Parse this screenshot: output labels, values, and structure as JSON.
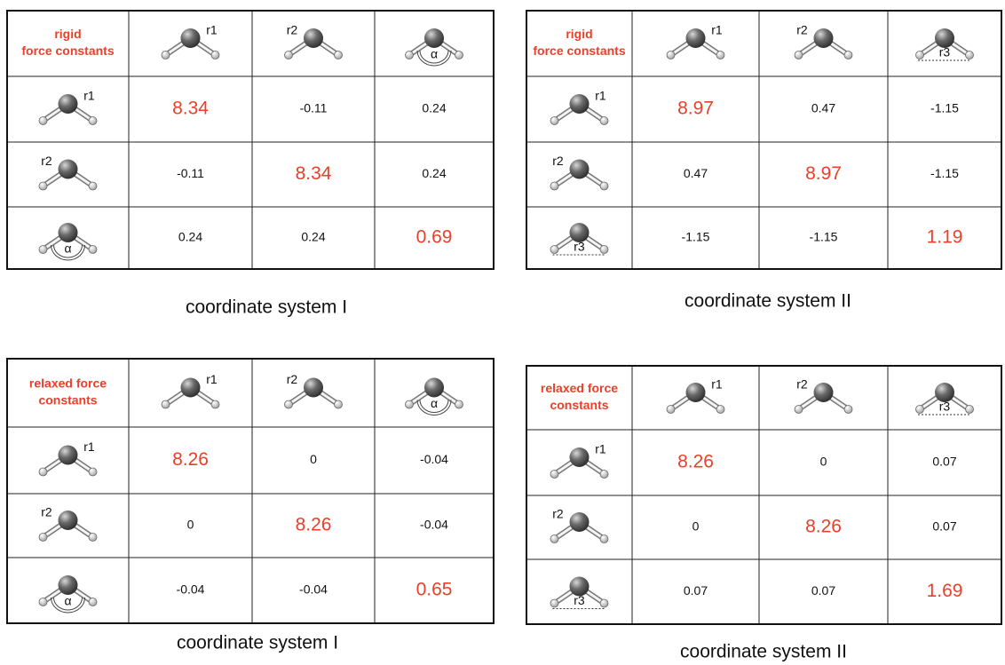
{
  "tables": [
    {
      "header": [
        "rigid",
        "force constants"
      ],
      "columns": [
        "r1",
        "r2",
        "α"
      ],
      "rows": [
        "r1",
        "r2",
        "α"
      ],
      "cells": [
        [
          "8.34",
          "-0.11",
          "0.24"
        ],
        [
          "-0.11",
          "8.34",
          "0.24"
        ],
        [
          "0.24",
          "0.24",
          "0.69"
        ]
      ],
      "caption": "coordinate system I"
    },
    {
      "header": [
        "rigid",
        "force constants"
      ],
      "columns": [
        "r1",
        "r2",
        "r3"
      ],
      "rows": [
        "r1",
        "r2",
        "r3"
      ],
      "cells": [
        [
          "8.97",
          "0.47",
          "-1.15"
        ],
        [
          "0.47",
          "8.97",
          "-1.15"
        ],
        [
          "-1.15",
          "-1.15",
          "1.19"
        ]
      ],
      "caption": "coordinate system II"
    },
    {
      "header": [
        "relaxed force",
        "constants"
      ],
      "columns": [
        "r1",
        "r2",
        "α"
      ],
      "rows": [
        "r1",
        "r2",
        "α"
      ],
      "cells": [
        [
          "8.26",
          "0",
          "-0.04"
        ],
        [
          "0",
          "8.26",
          "-0.04"
        ],
        [
          "-0.04",
          "-0.04",
          "0.65"
        ]
      ],
      "caption": "coordinate system I"
    },
    {
      "header": [
        "relaxed force",
        "constants"
      ],
      "columns": [
        "r1",
        "r2",
        "r3"
      ],
      "rows": [
        "r1",
        "r2",
        "r3"
      ],
      "cells": [
        [
          "8.26",
          "0",
          "0.07"
        ],
        [
          "0",
          "8.26",
          "0.07"
        ],
        [
          "0.07",
          "0.07",
          "1.69"
        ]
      ],
      "caption": "coordinate system II"
    }
  ]
}
